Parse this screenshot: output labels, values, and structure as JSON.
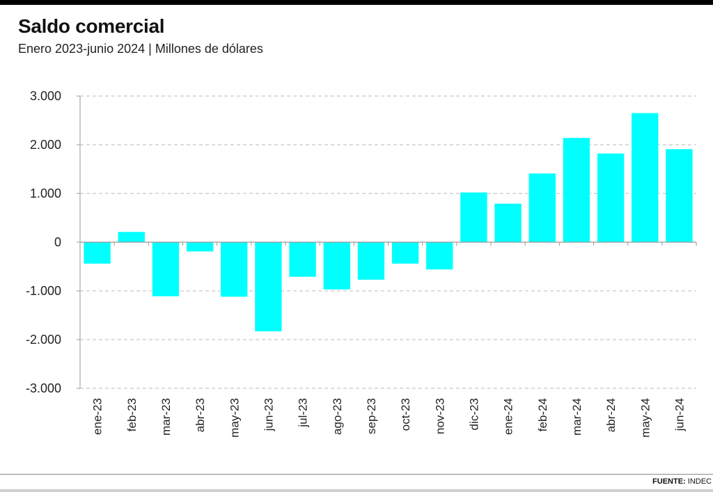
{
  "header": {
    "title": "Saldo comercial",
    "subtitle": "Enero 2023-junio 2024 | Millones de dólares"
  },
  "footer": {
    "source_label": "FUENTE:",
    "source_value": "INDEC"
  },
  "colors": {
    "bar": "#00ffff",
    "grid": "#b8b8b8",
    "axis": "#999999",
    "text": "#222222"
  },
  "chart_data": {
    "type": "bar",
    "title": "Saldo comercial",
    "subtitle": "Enero 2023-junio 2024 | Millones de dólares",
    "xlabel": "",
    "ylabel": "",
    "ylim": [
      -3000,
      3000
    ],
    "yticks": [
      3000,
      2000,
      1000,
      0,
      -1000,
      -2000,
      -3000
    ],
    "ytick_labels": [
      "3.000",
      "2.000",
      "1.000",
      "0",
      "-1.000",
      "-2.000",
      "-3.000"
    ],
    "grid": true,
    "legend": "none",
    "categories": [
      "ene-23",
      "feb-23",
      "mar-23",
      "abr-23",
      "may-23",
      "jun-23",
      "jul-23",
      "ago-23",
      "sep-23",
      "oct-23",
      "nov-23",
      "dic-23",
      "ene-24",
      "feb-24",
      "mar-24",
      "abr-24",
      "may-24",
      "jun-24"
    ],
    "values": [
      -440,
      210,
      -1110,
      -190,
      -1120,
      -1830,
      -710,
      -970,
      -770,
      -440,
      -560,
      1020,
      790,
      1410,
      2140,
      1820,
      2650,
      1910
    ]
  }
}
